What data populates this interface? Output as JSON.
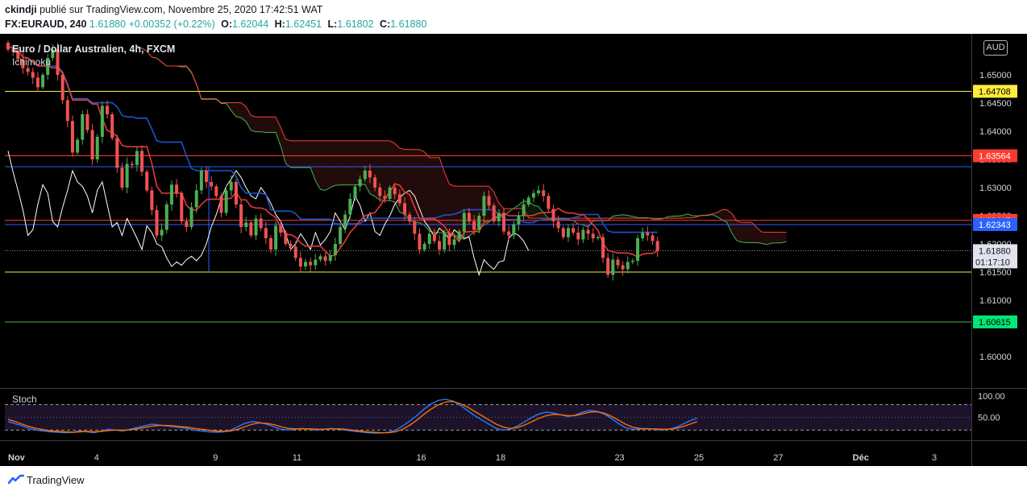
{
  "header": {
    "author": "ckindji",
    "published": "publié sur TradingView.com, Novembre 25, 2020 17:42:51 WAT",
    "symbol": "FX:EURAUD, 240",
    "last": "1.61880",
    "change": "+0.00352 (+0.22%)",
    "o_label": "O:",
    "o": "1.62044",
    "h_label": "H:",
    "h": "1.62451",
    "l_label": "L:",
    "l": "1.61802",
    "c_label": "C:",
    "c": "1.61880"
  },
  "title": "Euro / Dollar Australien, 4h, FXCM",
  "indicator": "Ichimoku",
  "stoch_label": "Stoch",
  "currency": "AUD",
  "footer": {
    "brand": "TradingView"
  },
  "colors": {
    "bull": "#4caf50",
    "bear": "#ef5350",
    "yellow": "#ffeb3b",
    "red": "#ff3b30",
    "blue": "#2962ff",
    "green": "#4caf50",
    "tenkan": "#e53935",
    "kijun": "#1e53c8",
    "lagging": "#ffffff",
    "stoch_k": "#2979ff",
    "stoch_d": "#ff6d00"
  },
  "chart_data": [
    {
      "type": "candlestick",
      "title": "Euro / Dollar Australien, 4h, FXCM",
      "ylim": [
        1.595,
        1.657
      ],
      "y_ticks": [
        1.6,
        1.61,
        1.615,
        1.62,
        1.625,
        1.63,
        1.635,
        1.64,
        1.645,
        1.65
      ],
      "y_tick_labels": [
        "1.60000",
        "1.61000",
        "1.61500",
        "1.62000",
        "1.62500",
        "1.63000",
        "1.63500",
        "1.64000",
        "1.64500",
        "1.65000"
      ],
      "x_tick_labels": [
        {
          "label": "Nov",
          "bar": 0
        },
        {
          "label": "4",
          "bar": 18
        },
        {
          "label": "9",
          "bar": 42
        },
        {
          "label": "11",
          "bar": 58
        },
        {
          "label": "16",
          "bar": 83
        },
        {
          "label": "18",
          "bar": 99
        },
        {
          "label": "23",
          "bar": 123
        },
        {
          "label": "25",
          "bar": 139
        },
        {
          "label": "27",
          "bar": 155
        },
        {
          "label": "Déc",
          "bar": 171
        },
        {
          "label": "3",
          "bar": 187
        }
      ],
      "horizontal_lines": [
        {
          "price": 1.64708,
          "label": "1.64708",
          "color": "#ffeb3b"
        },
        {
          "price": 1.63564,
          "label": "1.63564",
          "color": "#ff3b30"
        },
        {
          "price": 1.6337,
          "color": "#2962ff"
        },
        {
          "price": 1.62417,
          "label": "1.62417",
          "color": "#ff3b30"
        },
        {
          "price": 1.62343,
          "label": "1.62343",
          "color": "#2962ff"
        },
        {
          "price": 1.615,
          "color": "#ffeb3b"
        },
        {
          "price": 1.60615,
          "label": "1.60615",
          "color": "#4caf50"
        }
      ],
      "last_price": {
        "price": 1.6188,
        "label": "1.61880",
        "countdown": "01:17:10"
      },
      "closes": [
        1.6545,
        1.6542,
        1.6528,
        1.6512,
        1.6505,
        1.6495,
        1.6478,
        1.65,
        1.653,
        1.6545,
        1.65,
        1.6455,
        1.6418,
        1.6362,
        1.6385,
        1.643,
        1.6402,
        1.635,
        1.639,
        1.6445,
        1.643,
        1.6388,
        1.6335,
        1.63,
        1.6342,
        1.634,
        1.6365,
        1.6328,
        1.6295,
        1.626,
        1.6215,
        1.6225,
        1.627,
        1.6305,
        1.629,
        1.624,
        1.623,
        1.6265,
        1.6295,
        1.633,
        1.631,
        1.6302,
        1.6285,
        1.6255,
        1.6295,
        1.631,
        1.627,
        1.623,
        1.6238,
        1.6215,
        1.6245,
        1.6228,
        1.621,
        1.619,
        1.6232,
        1.622,
        1.62,
        1.6195,
        1.6175,
        1.616,
        1.6168,
        1.6162,
        1.6172,
        1.6178,
        1.617,
        1.618,
        1.62,
        1.623,
        1.6252,
        1.628,
        1.6302,
        1.6315,
        1.633,
        1.6318,
        1.63,
        1.6285,
        1.628,
        1.63,
        1.6288,
        1.6272,
        1.6252,
        1.624,
        1.6218,
        1.619,
        1.62,
        1.6218,
        1.6205,
        1.619,
        1.622,
        1.6198,
        1.6208,
        1.6222,
        1.6255,
        1.624,
        1.6225,
        1.625,
        1.6285,
        1.6268,
        1.624,
        1.6255,
        1.6222,
        1.6215,
        1.6235,
        1.625,
        1.627,
        1.6282,
        1.629,
        1.6295,
        1.6285,
        1.6262,
        1.624,
        1.6228,
        1.6212,
        1.6228,
        1.622,
        1.6208,
        1.6225,
        1.6218,
        1.621,
        1.6212,
        1.6175,
        1.6145,
        1.6172,
        1.6162,
        1.6155,
        1.6168,
        1.617,
        1.621,
        1.622,
        1.6215,
        1.6205,
        1.6188
      ]
    },
    {
      "type": "line",
      "title": "Stoch",
      "ylim": [
        0,
        115
      ],
      "y_ticks": [
        50,
        100
      ],
      "y_tick_labels": [
        "50.00",
        "100.00"
      ],
      "bands": [
        20,
        80
      ],
      "series": [
        {
          "values": [
            40,
            35,
            30,
            24,
            20,
            18,
            16,
            15,
            14,
            15,
            18,
            16,
            14,
            18,
            22,
            20,
            18,
            22,
            26,
            30,
            34,
            32,
            30,
            28,
            26,
            24,
            20,
            18,
            16,
            15,
            16,
            20,
            28,
            36,
            40,
            38,
            34,
            28,
            22,
            20,
            22,
            24,
            22,
            20,
            22,
            24,
            22,
            20,
            18,
            16,
            14,
            13,
            13,
            15,
            20,
            30,
            42,
            55,
            70,
            82,
            90,
            92,
            88,
            78,
            66,
            54,
            44,
            34,
            24,
            20,
            22,
            30,
            40,
            50,
            58,
            62,
            60,
            56,
            52,
            55,
            62,
            66,
            64,
            58,
            48,
            36,
            26,
            22,
            22,
            24,
            22,
            20,
            22,
            26,
            34,
            42,
            48
          ]
        },
        {
          "values": [
            45,
            40,
            34,
            28,
            24,
            21,
            18,
            17,
            16,
            15,
            16,
            17,
            16,
            17,
            19,
            20,
            20,
            21,
            23,
            26,
            29,
            31,
            31,
            30,
            28,
            27,
            24,
            22,
            20,
            18,
            17,
            18,
            22,
            28,
            34,
            37,
            36,
            33,
            28,
            24,
            23,
            23,
            23,
            22,
            22,
            23,
            23,
            22,
            20,
            18,
            16,
            15,
            14,
            14,
            16,
            22,
            32,
            44,
            58,
            70,
            80,
            86,
            87,
            82,
            74,
            64,
            54,
            44,
            34,
            27,
            24,
            26,
            32,
            40,
            48,
            54,
            57,
            56,
            54,
            54,
            58,
            62,
            63,
            60,
            53,
            44,
            34,
            27,
            24,
            23,
            23,
            22,
            22,
            24,
            28,
            34,
            40
          ]
        }
      ]
    }
  ]
}
